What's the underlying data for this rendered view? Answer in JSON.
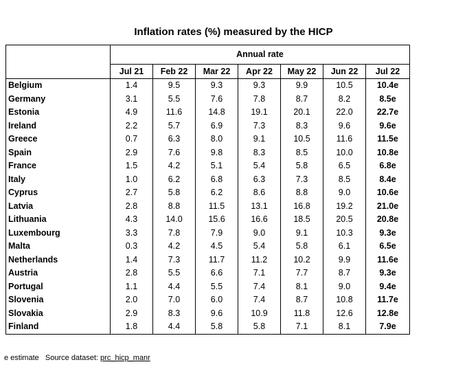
{
  "title": "Inflation rates (%) measured by the HICP",
  "group_header": "Annual rate",
  "columns": [
    "Jul 21",
    "Feb 22",
    "Mar 22",
    "Apr 22",
    "May 22",
    "Jun 22",
    "Jul 22"
  ],
  "rows": [
    {
      "country": "Belgium",
      "values": [
        "1.4",
        "9.5",
        "9.3",
        "9.3",
        "9.9",
        "10.5",
        "10.4e"
      ]
    },
    {
      "country": "Germany",
      "values": [
        "3.1",
        "5.5",
        "7.6",
        "7.8",
        "8.7",
        "8.2",
        "8.5e"
      ]
    },
    {
      "country": "Estonia",
      "values": [
        "4.9",
        "11.6",
        "14.8",
        "19.1",
        "20.1",
        "22.0",
        "22.7e"
      ]
    },
    {
      "country": "Ireland",
      "values": [
        "2.2",
        "5.7",
        "6.9",
        "7.3",
        "8.3",
        "9.6",
        "9.6e"
      ]
    },
    {
      "country": "Greece",
      "values": [
        "0.7",
        "6.3",
        "8.0",
        "9.1",
        "10.5",
        "11.6",
        "11.5e"
      ]
    },
    {
      "country": "Spain",
      "values": [
        "2.9",
        "7.6",
        "9.8",
        "8.3",
        "8.5",
        "10.0",
        "10.8e"
      ]
    },
    {
      "country": "France",
      "values": [
        "1.5",
        "4.2",
        "5.1",
        "5.4",
        "5.8",
        "6.5",
        "6.8e"
      ]
    },
    {
      "country": "Italy",
      "values": [
        "1.0",
        "6.2",
        "6.8",
        "6.3",
        "7.3",
        "8.5",
        "8.4e"
      ]
    },
    {
      "country": "Cyprus",
      "values": [
        "2.7",
        "5.8",
        "6.2",
        "8.6",
        "8.8",
        "9.0",
        "10.6e"
      ]
    },
    {
      "country": "Latvia",
      "values": [
        "2.8",
        "8.8",
        "11.5",
        "13.1",
        "16.8",
        "19.2",
        "21.0e"
      ]
    },
    {
      "country": "Lithuania",
      "values": [
        "4.3",
        "14.0",
        "15.6",
        "16.6",
        "18.5",
        "20.5",
        "20.8e"
      ]
    },
    {
      "country": "Luxembourg",
      "values": [
        "3.3",
        "7.8",
        "7.9",
        "9.0",
        "9.1",
        "10.3",
        "9.3e"
      ]
    },
    {
      "country": "Malta",
      "values": [
        "0.3",
        "4.2",
        "4.5",
        "5.4",
        "5.8",
        "6.1",
        "6.5e"
      ]
    },
    {
      "country": "Netherlands",
      "values": [
        "1.4",
        "7.3",
        "11.7",
        "11.2",
        "10.2",
        "9.9",
        "11.6e"
      ]
    },
    {
      "country": "Austria",
      "values": [
        "2.8",
        "5.5",
        "6.6",
        "7.1",
        "7.7",
        "8.7",
        "9.3e"
      ]
    },
    {
      "country": "Portugal",
      "values": [
        "1.1",
        "4.4",
        "5.5",
        "7.4",
        "8.1",
        "9.0",
        "9.4e"
      ]
    },
    {
      "country": "Slovenia",
      "values": [
        "2.0",
        "7.0",
        "6.0",
        "7.4",
        "8.7",
        "10.8",
        "11.7e"
      ]
    },
    {
      "country": "Slovakia",
      "values": [
        "2.9",
        "8.3",
        "9.6",
        "10.9",
        "11.8",
        "12.6",
        "12.8e"
      ]
    },
    {
      "country": "Finland",
      "values": [
        "1.8",
        "4.4",
        "5.8",
        "5.8",
        "7.1",
        "8.1",
        "7.9e"
      ]
    }
  ],
  "footnote": {
    "estimate": "e estimate",
    "source_label": "Source dataset:",
    "source_link": "prc_hicp_manr"
  }
}
